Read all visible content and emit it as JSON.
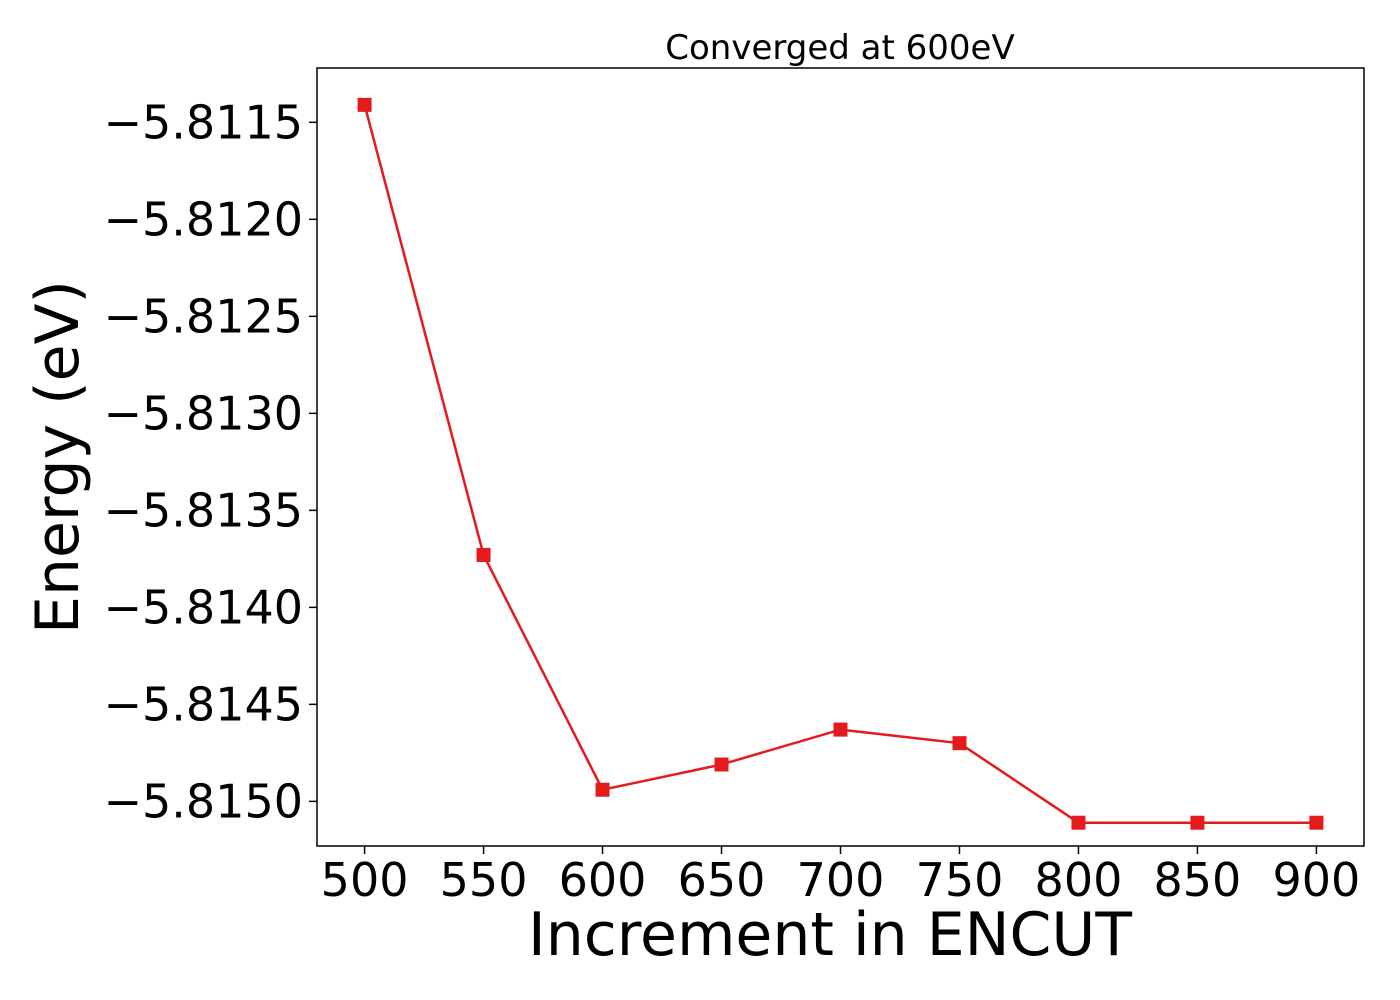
{
  "chart_data": {
    "type": "line",
    "title": "Converged at 600eV",
    "xlabel": "Increment in ENCUT",
    "ylabel": "Energy (eV)",
    "x": [
      500,
      550,
      600,
      650,
      700,
      750,
      800,
      850,
      900
    ],
    "series": [
      {
        "values": [
          -5.81141,
          -5.81373,
          -5.81494,
          -5.81481,
          -5.81463,
          -5.8147,
          -5.81511,
          -5.81511,
          -5.81511
        ],
        "color": "#e41a1c",
        "marker": "square"
      }
    ],
    "xticks": [
      500,
      550,
      600,
      650,
      700,
      750,
      800,
      850,
      900
    ],
    "xtick_labels": [
      "500",
      "550",
      "600",
      "650",
      "700",
      "750",
      "800",
      "850",
      "900"
    ],
    "yticks": [
      -5.8115,
      -5.812,
      -5.8125,
      -5.813,
      -5.8135,
      -5.814,
      -5.8145,
      -5.815
    ],
    "ytick_labels": [
      "−5.8115",
      "−5.8120",
      "−5.8125",
      "−5.8130",
      "−5.8135",
      "−5.8140",
      "−5.8145",
      "−5.8150"
    ],
    "xlim": [
      480,
      920
    ],
    "ylim": [
      -5.81523,
      -5.81122
    ],
    "grid": false,
    "legend": false
  }
}
